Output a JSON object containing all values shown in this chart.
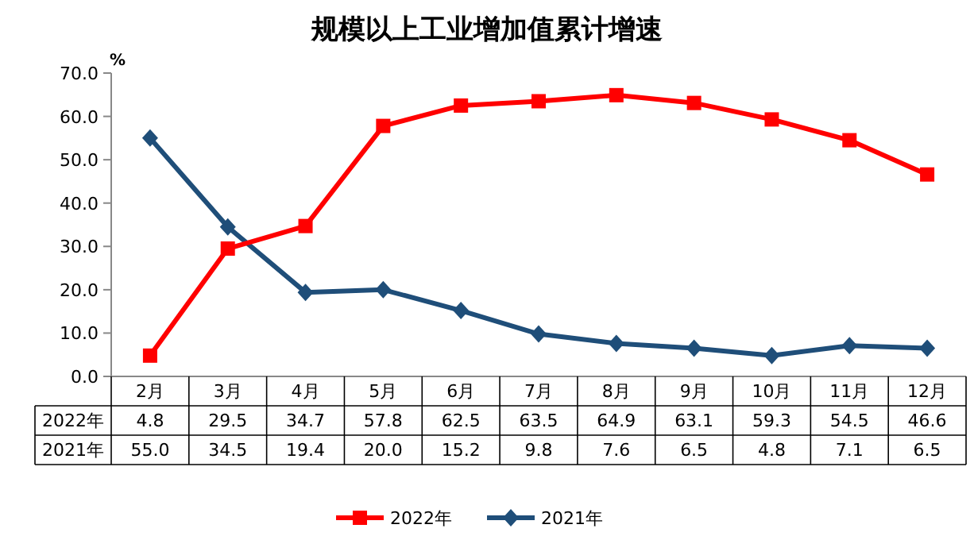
{
  "chart_data": {
    "type": "line",
    "title": "规模以上工业增加值累计增速",
    "ylabel": "%",
    "categories": [
      "2月",
      "3月",
      "4月",
      "5月",
      "6月",
      "7月",
      "8月",
      "9月",
      "10月",
      "11月",
      "12月"
    ],
    "series": [
      {
        "name": "2022年",
        "color": "#ff0000",
        "marker": "square",
        "values": [
          4.8,
          29.5,
          34.7,
          57.8,
          62.5,
          63.5,
          64.9,
          63.1,
          59.3,
          54.5,
          46.6
        ],
        "value_labels": [
          "4.8",
          "29.5",
          "34.7",
          "57.8",
          "62.5",
          "63.5",
          "64.9",
          "63.1",
          "59.3",
          "54.5",
          "46.6"
        ]
      },
      {
        "name": "2021年",
        "color": "#1f4e79",
        "marker": "diamond",
        "values": [
          55.0,
          34.5,
          19.4,
          20.0,
          15.2,
          9.8,
          7.6,
          6.5,
          4.8,
          7.1,
          6.5
        ],
        "value_labels": [
          "55.0",
          "34.5",
          "19.4",
          "20.0",
          "15.2",
          "9.8",
          "7.6",
          "6.5",
          "4.8",
          "7.1",
          "6.5"
        ]
      }
    ],
    "ylim": [
      0,
      70
    ],
    "yticks": [
      {
        "value": 0,
        "label": "0.0"
      },
      {
        "value": 10,
        "label": "10.0"
      },
      {
        "value": 20,
        "label": "20.0"
      },
      {
        "value": 30,
        "label": "30.0"
      },
      {
        "value": 40,
        "label": "40.0"
      },
      {
        "value": 50,
        "label": "50.0"
      },
      {
        "value": 60,
        "label": "60.0"
      },
      {
        "value": 70,
        "label": "70.0"
      }
    ],
    "grid": false,
    "legend": "bottom",
    "line_style": "solid"
  }
}
